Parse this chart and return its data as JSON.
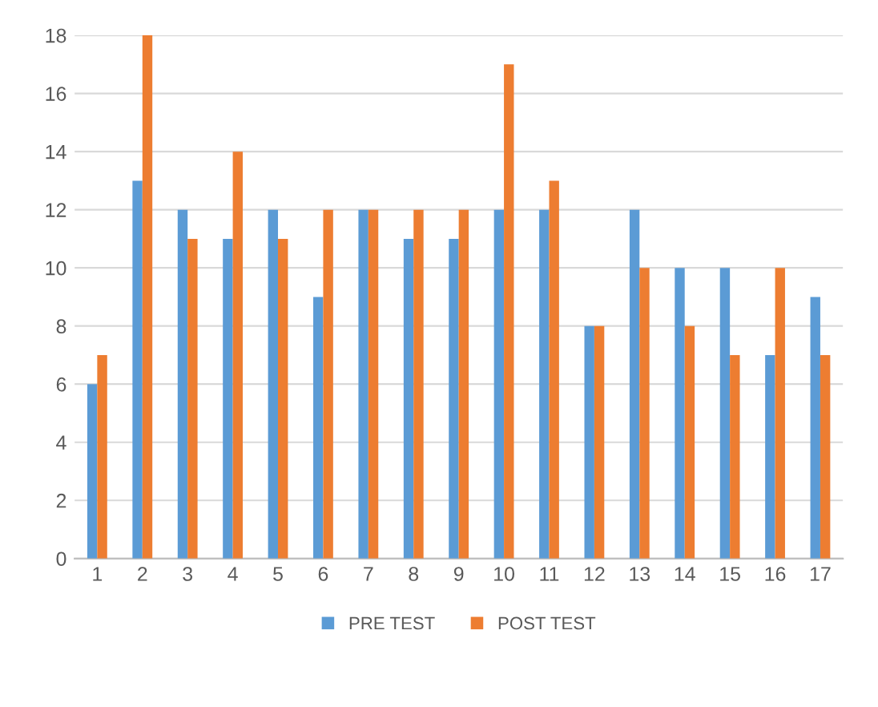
{
  "chart_data": {
    "type": "bar",
    "categories": [
      "1",
      "2",
      "3",
      "4",
      "5",
      "6",
      "7",
      "8",
      "9",
      "10",
      "11",
      "12",
      "13",
      "14",
      "15",
      "16",
      "17"
    ],
    "series": [
      {
        "name": "PRE TEST",
        "color": "#5b9bd5",
        "values": [
          6,
          13,
          12,
          11,
          12,
          9,
          12,
          11,
          11,
          12,
          12,
          8,
          12,
          10,
          10,
          7,
          9
        ]
      },
      {
        "name": "POST TEST",
        "color": "#ed7d31",
        "values": [
          7,
          18,
          11,
          14,
          11,
          12,
          12,
          12,
          12,
          17,
          13,
          8,
          10,
          8,
          7,
          10,
          7
        ]
      }
    ],
    "ylim": [
      0,
      18
    ],
    "yticks": [
      0,
      2,
      4,
      6,
      8,
      10,
      12,
      14,
      16,
      18
    ],
    "grid": "y",
    "legend": "bottom"
  }
}
